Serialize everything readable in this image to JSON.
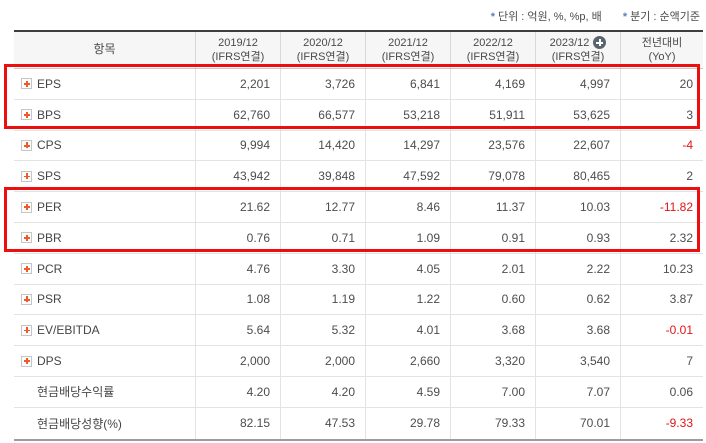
{
  "notes": {
    "unit": {
      "prefix": "*",
      "label": "단위 : 억원, %, %p, 배"
    },
    "basis": {
      "prefix": "*",
      "label": "분기 : 순액기준"
    }
  },
  "header": {
    "item_label": "항목",
    "year_columns": [
      {
        "period": "2019/12",
        "standard": "(IFRS연결)",
        "has_add_button": false
      },
      {
        "period": "2020/12",
        "standard": "(IFRS연결)",
        "has_add_button": false
      },
      {
        "period": "2021/12",
        "standard": "(IFRS연결)",
        "has_add_button": false
      },
      {
        "period": "2022/12",
        "standard": "(IFRS연결)",
        "has_add_button": false
      },
      {
        "period": "2023/12",
        "standard": "(IFRS연결)",
        "has_add_button": true
      }
    ],
    "yoy_column": {
      "line1": "전년대비",
      "line2": "(YoY)"
    }
  },
  "rows": [
    {
      "label": "EPS",
      "has_expand_icon": true,
      "values": [
        "2,201",
        "3,726",
        "6,841",
        "4,169",
        "4,997"
      ],
      "yoy": "20"
    },
    {
      "label": "BPS",
      "has_expand_icon": true,
      "values": [
        "62,760",
        "66,577",
        "53,218",
        "51,911",
        "53,625"
      ],
      "yoy": "3"
    },
    {
      "label": "CPS",
      "has_expand_icon": true,
      "values": [
        "9,994",
        "14,420",
        "14,297",
        "23,576",
        "22,607"
      ],
      "yoy": "-4"
    },
    {
      "label": "SPS",
      "has_expand_icon": true,
      "values": [
        "43,942",
        "39,848",
        "47,592",
        "79,078",
        "80,465"
      ],
      "yoy": "2"
    },
    {
      "label": "PER",
      "has_expand_icon": true,
      "values": [
        "21.62",
        "12.77",
        "8.46",
        "11.37",
        "10.03"
      ],
      "yoy": "-11.82"
    },
    {
      "label": "PBR",
      "has_expand_icon": true,
      "values": [
        "0.76",
        "0.71",
        "1.09",
        "0.91",
        "0.93"
      ],
      "yoy": "2.32"
    },
    {
      "label": "PCR",
      "has_expand_icon": true,
      "values": [
        "4.76",
        "3.30",
        "4.05",
        "2.01",
        "2.22"
      ],
      "yoy": "10.23"
    },
    {
      "label": "PSR",
      "has_expand_icon": true,
      "values": [
        "1.08",
        "1.19",
        "1.22",
        "0.60",
        "0.62"
      ],
      "yoy": "3.87"
    },
    {
      "label": "EV/EBITDA",
      "has_expand_icon": true,
      "values": [
        "5.64",
        "5.32",
        "4.01",
        "3.68",
        "3.68"
      ],
      "yoy": "-0.01"
    },
    {
      "label": "DPS",
      "has_expand_icon": true,
      "values": [
        "2,000",
        "2,000",
        "2,660",
        "3,320",
        "3,540"
      ],
      "yoy": "7"
    },
    {
      "label": "현금배당수익률",
      "has_expand_icon": false,
      "values": [
        "4.20",
        "4.20",
        "4.59",
        "7.00",
        "7.07"
      ],
      "yoy": "0.06"
    },
    {
      "label": "현금배당성향(%)",
      "has_expand_icon": false,
      "values": [
        "82.15",
        "47.53",
        "29.78",
        "79.33",
        "70.01"
      ],
      "yoy": "-9.33"
    }
  ],
  "colors": {
    "highlight_box": "#ec0f0f",
    "negative_value": "#e41414",
    "expand_plus": "#f05a28",
    "header_add_badge": "#5a6470",
    "note_asterisk": "#5f7cc0"
  }
}
